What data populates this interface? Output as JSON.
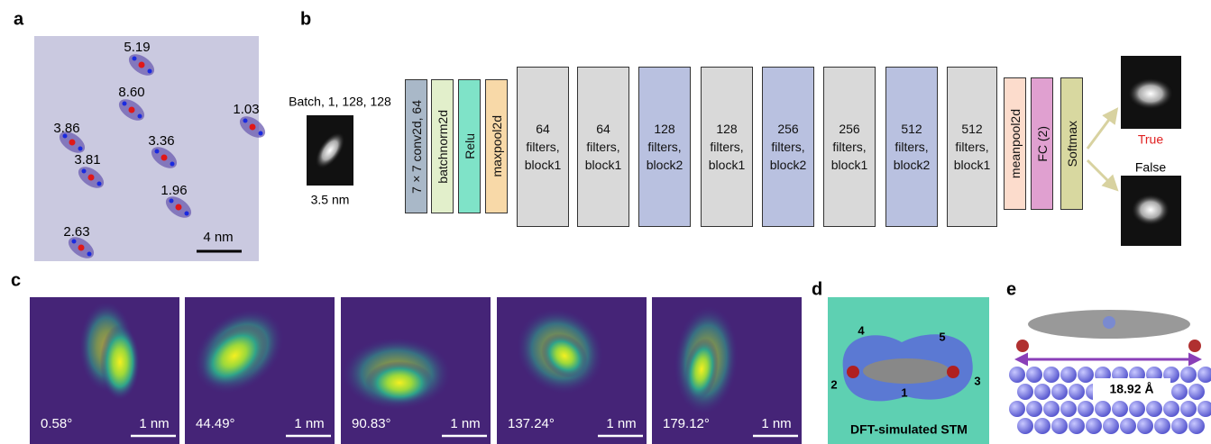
{
  "panels": {
    "a": {
      "label": "a",
      "annotations": [
        "5.19",
        "8.60",
        "1.03",
        "3.86",
        "3.36",
        "3.81",
        "1.96",
        "2.63"
      ],
      "scale_bar": "4 nm"
    },
    "b": {
      "label": "b",
      "input_shape": "Batch, 1, 128, 128",
      "input_size": "3.5 nm",
      "layers": [
        "7×7 conv2d, 64",
        "batchnorm2d",
        "Relu",
        "maxpool2d",
        "64 filters, block1",
        "64 filters, block1",
        "128 filters, block2",
        "128 filters, block1",
        "256 filters, block2",
        "256 filters, block1",
        "512 filters, block2",
        "512 filters, block1",
        "meanpool2d",
        "FC (2)",
        "Softmax"
      ],
      "outputs": [
        "True",
        "False"
      ]
    },
    "c": {
      "label": "c",
      "frames": [
        {
          "angle": "0.58°",
          "scale_bar": "1 nm"
        },
        {
          "angle": "44.49°",
          "scale_bar": "1 nm"
        },
        {
          "angle": "90.83°",
          "scale_bar": "1 nm"
        },
        {
          "angle": "137.24°",
          "scale_bar": "1 nm"
        },
        {
          "angle": "179.12°",
          "scale_bar": "1 nm"
        }
      ]
    },
    "d": {
      "label": "d",
      "site_labels": [
        "4",
        "5",
        "2",
        "1",
        "3"
      ],
      "caption": "DFT-simulated STM"
    },
    "e": {
      "label": "e",
      "distance": "18.92 Å"
    }
  }
}
